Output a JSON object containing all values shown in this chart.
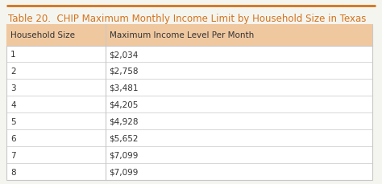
{
  "title": "Table 20.  CHIP Maximum Monthly Income Limit by Household Size in Texas",
  "title_color": "#D4721A",
  "title_fontsize": 8.5,
  "col_headers": [
    "Household Size",
    "Maximum Income Level Per Month"
  ],
  "header_bg_color": "#F0C8A0",
  "header_text_color": "#333333",
  "header_fontsize": 7.5,
  "rows": [
    [
      "1",
      "$2,034"
    ],
    [
      "2",
      "$2,758"
    ],
    [
      "3",
      "$3,481"
    ],
    [
      "4",
      "$4,205"
    ],
    [
      "5",
      "$4,928"
    ],
    [
      "6",
      "$5,652"
    ],
    [
      "7",
      "$7,099"
    ],
    [
      "8",
      "$7,099"
    ]
  ],
  "row_text_color": "#333333",
  "row_fontsize": 7.5,
  "table_bg_color": "#FFFFFF",
  "border_color": "#C8C8C8",
  "top_border_color": "#D4721A",
  "outer_bg_color": "#F5F5F0",
  "col_split": 0.27
}
